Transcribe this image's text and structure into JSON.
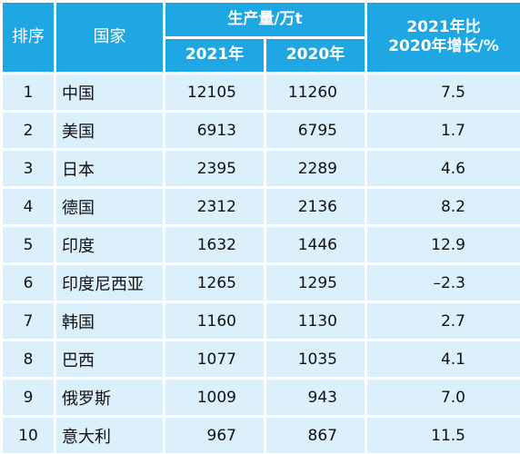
{
  "header": {
    "rank": "排序",
    "country": "国家",
    "production_group": "生产量/万t",
    "year_2021": "2021年",
    "year_2020": "2020年",
    "growth_line1": "2021年比",
    "growth_line2": "2020年增长/%"
  },
  "rows": [
    {
      "rank": "1",
      "country": "中国",
      "v2021": "12105",
      "v2020": "11260",
      "growth": "7.5"
    },
    {
      "rank": "2",
      "country": "美国",
      "v2021": "6913",
      "v2020": "6795",
      "growth": "1.7"
    },
    {
      "rank": "3",
      "country": "日本",
      "v2021": "2395",
      "v2020": "2289",
      "growth": "4.6"
    },
    {
      "rank": "4",
      "country": "德国",
      "v2021": "2312",
      "v2020": "2136",
      "growth": "8.2"
    },
    {
      "rank": "5",
      "country": "印度",
      "v2021": "1632",
      "v2020": "1446",
      "growth": "12.9"
    },
    {
      "rank": "6",
      "country": "印度尼西亚",
      "v2021": "1265",
      "v2020": "1295",
      "growth": "–2.3"
    },
    {
      "rank": "7",
      "country": "韩国",
      "v2021": "1160",
      "v2020": "1130",
      "growth": "2.7"
    },
    {
      "rank": "8",
      "country": "巴西",
      "v2021": "1077",
      "v2020": "1035",
      "growth": "4.1"
    },
    {
      "rank": "9",
      "country": "俄罗斯",
      "v2021": "1009",
      "v2020": "943",
      "growth": "7.0"
    },
    {
      "rank": "10",
      "country": "意大利",
      "v2021": "967",
      "v2020": "867",
      "growth": "11.5"
    }
  ],
  "colors": {
    "header_bg": "#1fa7e4",
    "cell_bg": "#dcf0fb"
  }
}
